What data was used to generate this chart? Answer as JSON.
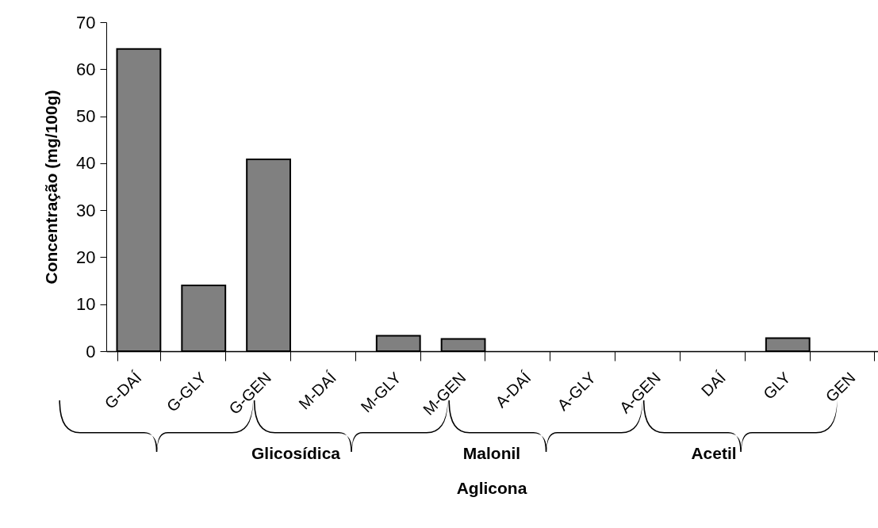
{
  "chart_data": {
    "type": "bar",
    "ylabel": "Concentração (mg/100g)",
    "categories": [
      "G-DAÍ",
      "G-GLY",
      "G-GEN",
      "M-DAÍ",
      "M-GLY",
      "M-GEN",
      "A-DAÍ",
      "A-GLY",
      "A-GEN",
      "DAÍ",
      "GLY",
      "GEN"
    ],
    "values": [
      64.3,
      14.0,
      40.8,
      0,
      3.3,
      2.6,
      0,
      0,
      0,
      0,
      2.8,
      0
    ],
    "color": "#808080",
    "ylim": [
      0,
      70
    ],
    "yticks": [
      0,
      10,
      20,
      30,
      40,
      50,
      60,
      70
    ],
    "grid": false,
    "annotations": [
      "Glicosídica",
      "Malonil",
      "Acetil",
      "Aglicona"
    ]
  }
}
